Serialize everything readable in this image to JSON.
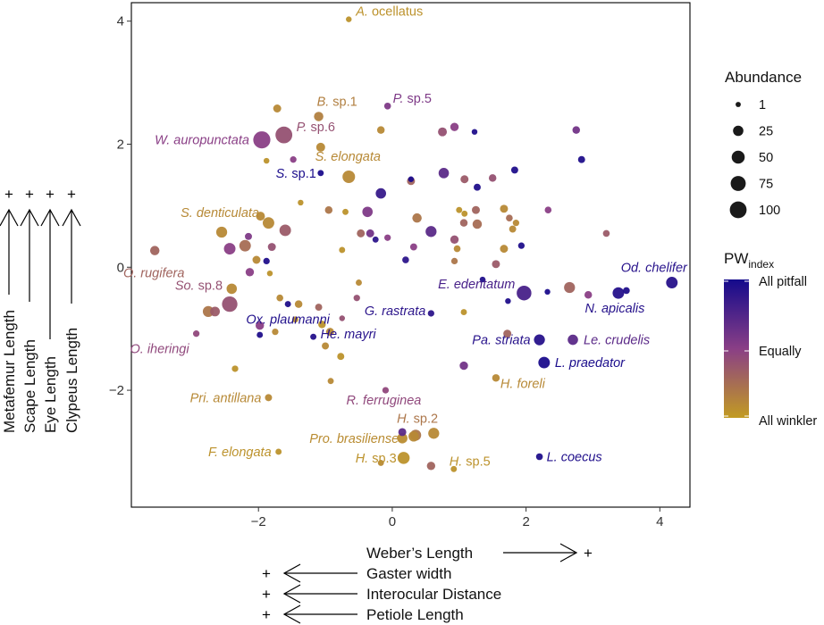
{
  "chart_data": {
    "type": "scatter",
    "x_ticks": [
      -2,
      0,
      2,
      4
    ],
    "y_ticks": [
      -2,
      0,
      2,
      4
    ],
    "xlim": [
      -3.9,
      4.45
    ],
    "ylim": [
      -3.9,
      4.3
    ],
    "grid": false,
    "legend": {
      "placement": "right",
      "size_title": "Abundance",
      "size_breaks": [
        {
          "label": "1",
          "value": 1
        },
        {
          "label": "25",
          "value": 25
        },
        {
          "label": "50",
          "value": 50
        },
        {
          "label": "75",
          "value": 75
        },
        {
          "label": "100",
          "value": 100
        }
      ],
      "color_title_main": "PW",
      "color_title_sub": "index",
      "color_labels": [
        "All pitfall",
        "Equally",
        "All winkler"
      ],
      "color_stops": [
        "#140a8c",
        "#8a3f86",
        "#c29b22"
      ]
    },
    "x_axis_loadings": {
      "positive": [
        {
          "label": "Weber’s Length",
          "sign": "+"
        }
      ],
      "negative": [
        {
          "label": "Gaster width",
          "sign": "+"
        },
        {
          "label": "Interocular Distance",
          "sign": "+"
        },
        {
          "label": "Petiole Length",
          "sign": "+"
        }
      ]
    },
    "y_axis_loadings": [
      {
        "label": "Metafemur Length",
        "sign": "+"
      },
      {
        "label": "Scape Length",
        "sign": "+"
      },
      {
        "label": "Eye Length",
        "sign": "+"
      },
      {
        "label": "Clypeus Length",
        "sign": "+"
      }
    ],
    "labeled_points": [
      {
        "genus": "A.",
        "epithet": " ocellatus",
        "x": -0.65,
        "y": 4.03,
        "pw": 0.05,
        "abundance": 2
      },
      {
        "genus": "B.",
        "epithet": " sp.1",
        "x": -1.1,
        "y": 2.45,
        "pw": 0.15,
        "abundance": 18
      },
      {
        "genus": "P.",
        "epithet": " sp.5",
        "x": -0.07,
        "y": 2.62,
        "pw": 0.55,
        "abundance": 5
      },
      {
        "genus": "W. auropunctata",
        "epithet": "",
        "x": -1.95,
        "y": 2.07,
        "pw": 0.5,
        "abundance": 105
      },
      {
        "genus": "P.",
        "epithet": " sp.6",
        "x": -1.62,
        "y": 2.15,
        "pw": 0.4,
        "abundance": 100
      },
      {
        "genus": "S. elongata",
        "epithet": "",
        "x": -0.65,
        "y": 1.47,
        "pw": 0.1,
        "abundance": 45
      },
      {
        "genus": "S.",
        "epithet": " sp.1",
        "x": -1.07,
        "y": 1.53,
        "pw": 0.97,
        "abundance": 3
      },
      {
        "genus": "S. denticulata",
        "epithet": "",
        "x": -2.55,
        "y": 0.57,
        "pw": 0.1,
        "abundance": 30
      },
      {
        "genus": "O. rugifera",
        "epithet": "",
        "x": -3.55,
        "y": 0.27,
        "pw": 0.3,
        "abundance": 18
      },
      {
        "genus": "So.",
        "epithet": " sp.8",
        "x": -2.43,
        "y": -0.6,
        "pw": 0.4,
        "abundance": 80
      },
      {
        "genus": "Ox. plaumanni",
        "epithet": "",
        "x": -1.56,
        "y": -0.6,
        "pw": 0.95,
        "abundance": 3
      },
      {
        "genus": "O. iheringi",
        "epithet": "",
        "x": -2.93,
        "y": -1.08,
        "pw": 0.45,
        "abundance": 4
      },
      {
        "genus": "He. mayri",
        "epithet": "",
        "x": -1.18,
        "y": -1.13,
        "pw": 0.93,
        "abundance": 3
      },
      {
        "genus": "G. rastrata",
        "epithet": "",
        "x": 0.58,
        "y": -0.75,
        "pw": 0.9,
        "abundance": 4
      },
      {
        "genus": "E. edentatum",
        "epithet": "",
        "x": 1.97,
        "y": -0.42,
        "pw": 0.78,
        "abundance": 70
      },
      {
        "genus": "Od. chelifer",
        "epithet": "",
        "x": 4.18,
        "y": -0.25,
        "pw": 0.92,
        "abundance": 35
      },
      {
        "genus": "N. apicalis",
        "epithet": "",
        "x": 3.38,
        "y": -0.42,
        "pw": 0.93,
        "abundance": 35
      },
      {
        "genus": "Pa. striata",
        "epithet": "",
        "x": 2.2,
        "y": -1.18,
        "pw": 0.92,
        "abundance": 30
      },
      {
        "genus": "Le. crudelis",
        "epithet": "",
        "x": 2.7,
        "y": -1.18,
        "pw": 0.7,
        "abundance": 25
      },
      {
        "genus": "L. praedator",
        "epithet": "",
        "x": 2.27,
        "y": -1.55,
        "pw": 0.97,
        "abundance": 35
      },
      {
        "genus": "H. foreli",
        "epithet": "",
        "x": 1.55,
        "y": -1.8,
        "pw": 0.1,
        "abundance": 8
      },
      {
        "genus": "Pri. antillana",
        "epithet": "",
        "x": -1.85,
        "y": -2.12,
        "pw": 0.1,
        "abundance": 6
      },
      {
        "genus": "R. ferruginea",
        "epithet": "",
        "x": -0.1,
        "y": -2.0,
        "pw": 0.45,
        "abundance": 4
      },
      {
        "genus": "H.",
        "epithet": " sp.2",
        "x": 0.35,
        "y": -2.73,
        "pw": 0.2,
        "abundance": 30
      },
      {
        "genus": "Pro. brasiliense",
        "epithet": "",
        "x": 0.15,
        "y": -2.78,
        "pw": 0.08,
        "abundance": 25
      },
      {
        "genus": "F. elongata",
        "epithet": "",
        "x": -1.7,
        "y": -3.0,
        "pw": 0.05,
        "abundance": 3
      },
      {
        "genus": "H.",
        "epithet": " sp.3",
        "x": 0.17,
        "y": -3.1,
        "pw": 0.05,
        "abundance": 40
      },
      {
        "genus": "H.",
        "epithet": " sp.5",
        "x": 0.92,
        "y": -3.28,
        "pw": 0.05,
        "abundance": 3
      },
      {
        "genus": "L. coecus",
        "epithet": "",
        "x": 2.2,
        "y": -3.08,
        "pw": 0.95,
        "abundance": 5
      }
    ],
    "other_points": [
      {
        "x": -1.72,
        "y": 2.58,
        "pw": 0.1,
        "abundance": 10
      },
      {
        "x": -1.07,
        "y": 1.95,
        "pw": 0.1,
        "abundance": 15
      },
      {
        "x": -1.48,
        "y": 1.75,
        "pw": 0.5,
        "abundance": 4
      },
      {
        "x": -1.88,
        "y": 1.73,
        "pw": 0.05,
        "abundance": 2
      },
      {
        "x": -0.17,
        "y": 2.23,
        "pw": 0.1,
        "abundance": 8
      },
      {
        "x": 0.75,
        "y": 2.2,
        "pw": 0.4,
        "abundance": 15
      },
      {
        "x": 0.93,
        "y": 2.28,
        "pw": 0.5,
        "abundance": 12
      },
      {
        "x": 1.23,
        "y": 2.2,
        "pw": 0.95,
        "abundance": 2
      },
      {
        "x": 2.75,
        "y": 2.23,
        "pw": 0.6,
        "abundance": 8
      },
      {
        "x": 2.83,
        "y": 1.75,
        "pw": 0.95,
        "abundance": 6
      },
      {
        "x": 0.77,
        "y": 1.53,
        "pw": 0.7,
        "abundance": 25
      },
      {
        "x": 1.08,
        "y": 1.43,
        "pw": 0.35,
        "abundance": 10
      },
      {
        "x": 1.27,
        "y": 1.3,
        "pw": 0.95,
        "abundance": 6
      },
      {
        "x": 1.83,
        "y": 1.58,
        "pw": 0.95,
        "abundance": 6
      },
      {
        "x": 1.5,
        "y": 1.45,
        "pw": 0.4,
        "abundance": 8
      },
      {
        "x": 0.28,
        "y": 1.4,
        "pw": 0.3,
        "abundance": 10
      },
      {
        "x": 0.28,
        "y": 1.43,
        "pw": 0.97,
        "abundance": 2
      },
      {
        "x": -0.17,
        "y": 1.2,
        "pw": 0.85,
        "abundance": 25
      },
      {
        "x": -1.37,
        "y": 1.05,
        "pw": 0.05,
        "abundance": 2
      },
      {
        "x": -0.95,
        "y": 0.93,
        "pw": 0.2,
        "abundance": 8
      },
      {
        "x": -0.7,
        "y": 0.9,
        "pw": 0.05,
        "abundance": 3
      },
      {
        "x": -0.37,
        "y": 0.9,
        "pw": 0.55,
        "abundance": 25
      },
      {
        "x": -1.97,
        "y": 0.83,
        "pw": 0.1,
        "abundance": 15
      },
      {
        "x": -1.85,
        "y": 0.72,
        "pw": 0.1,
        "abundance": 35
      },
      {
        "x": -1.6,
        "y": 0.6,
        "pw": 0.35,
        "abundance": 35
      },
      {
        "x": -1.8,
        "y": 0.33,
        "pw": 0.4,
        "abundance": 10
      },
      {
        "x": -2.15,
        "y": 0.5,
        "pw": 0.55,
        "abundance": 6
      },
      {
        "x": -2.2,
        "y": 0.35,
        "pw": 0.25,
        "abundance": 35
      },
      {
        "x": -2.43,
        "y": 0.3,
        "pw": 0.5,
        "abundance": 35
      },
      {
        "x": -2.03,
        "y": 0.12,
        "pw": 0.1,
        "abundance": 10
      },
      {
        "x": -1.88,
        "y": 0.1,
        "pw": 0.95,
        "abundance": 4
      },
      {
        "x": -2.13,
        "y": -0.08,
        "pw": 0.5,
        "abundance": 12
      },
      {
        "x": -1.83,
        "y": -0.1,
        "pw": 0.05,
        "abundance": 2
      },
      {
        "x": -0.75,
        "y": 0.28,
        "pw": 0.05,
        "abundance": 3
      },
      {
        "x": -0.47,
        "y": 0.55,
        "pw": 0.3,
        "abundance": 10
      },
      {
        "x": -0.33,
        "y": 0.55,
        "pw": 0.6,
        "abundance": 10
      },
      {
        "x": -0.25,
        "y": 0.45,
        "pw": 0.9,
        "abundance": 3
      },
      {
        "x": -0.07,
        "y": 0.48,
        "pw": 0.5,
        "abundance": 4
      },
      {
        "x": 0.37,
        "y": 0.8,
        "pw": 0.2,
        "abundance": 18
      },
      {
        "x": 0.58,
        "y": 0.58,
        "pw": 0.7,
        "abundance": 30
      },
      {
        "x": 0.32,
        "y": 0.33,
        "pw": 0.5,
        "abundance": 6
      },
      {
        "x": 0.2,
        "y": 0.12,
        "pw": 0.9,
        "abundance": 5
      },
      {
        "x": 0.93,
        "y": 0.45,
        "pw": 0.4,
        "abundance": 12
      },
      {
        "x": 1.08,
        "y": 0.87,
        "pw": 0.05,
        "abundance": 3
      },
      {
        "x": 1.0,
        "y": 0.93,
        "pw": 0.05,
        "abundance": 3
      },
      {
        "x": 1.25,
        "y": 0.93,
        "pw": 0.3,
        "abundance": 10
      },
      {
        "x": 1.27,
        "y": 0.7,
        "pw": 0.25,
        "abundance": 18
      },
      {
        "x": 1.07,
        "y": 0.72,
        "pw": 0.3,
        "abundance": 8
      },
      {
        "x": 0.97,
        "y": 0.3,
        "pw": 0.1,
        "abundance": 5
      },
      {
        "x": 0.93,
        "y": 0.1,
        "pw": 0.2,
        "abundance": 4
      },
      {
        "x": 1.67,
        "y": 0.95,
        "pw": 0.1,
        "abundance": 10
      },
      {
        "x": 1.75,
        "y": 0.8,
        "pw": 0.25,
        "abundance": 5
      },
      {
        "x": 1.8,
        "y": 0.62,
        "pw": 0.1,
        "abundance": 6
      },
      {
        "x": 1.85,
        "y": 0.72,
        "pw": 0.1,
        "abundance": 4
      },
      {
        "x": 1.93,
        "y": 0.35,
        "pw": 0.95,
        "abundance": 4
      },
      {
        "x": 1.67,
        "y": 0.3,
        "pw": 0.1,
        "abundance": 10
      },
      {
        "x": 1.55,
        "y": 0.05,
        "pw": 0.35,
        "abundance": 10
      },
      {
        "x": 2.33,
        "y": 0.93,
        "pw": 0.5,
        "abundance": 5
      },
      {
        "x": 1.35,
        "y": -0.2,
        "pw": 0.95,
        "abundance": 2
      },
      {
        "x": 1.07,
        "y": -0.73,
        "pw": 0.05,
        "abundance": 3
      },
      {
        "x": 2.65,
        "y": -0.33,
        "pw": 0.3,
        "abundance": 30
      },
      {
        "x": 2.93,
        "y": -0.45,
        "pw": 0.5,
        "abundance": 8
      },
      {
        "x": 3.5,
        "y": -0.38,
        "pw": 0.95,
        "abundance": 5
      },
      {
        "x": 2.32,
        "y": -0.4,
        "pw": 0.97,
        "abundance": 2
      },
      {
        "x": 1.73,
        "y": -0.55,
        "pw": 0.95,
        "abundance": 2
      },
      {
        "x": 1.72,
        "y": -1.08,
        "pw": 0.3,
        "abundance": 10
      },
      {
        "x": 1.07,
        "y": -1.6,
        "pw": 0.6,
        "abundance": 12
      },
      {
        "x": 3.2,
        "y": 0.55,
        "pw": 0.35,
        "abundance": 5
      },
      {
        "x": -0.53,
        "y": -0.5,
        "pw": 0.4,
        "abundance": 4
      },
      {
        "x": -0.75,
        "y": -0.83,
        "pw": 0.4,
        "abundance": 2
      },
      {
        "x": -0.77,
        "y": -1.45,
        "pw": 0.05,
        "abundance": 6
      },
      {
        "x": -0.93,
        "y": -1.05,
        "pw": 0.1,
        "abundance": 10
      },
      {
        "x": -1.05,
        "y": -0.93,
        "pw": 0.05,
        "abundance": 8
      },
      {
        "x": -1.1,
        "y": -0.65,
        "pw": 0.3,
        "abundance": 6
      },
      {
        "x": -1.4,
        "y": -0.6,
        "pw": 0.1,
        "abundance": 8
      },
      {
        "x": -1.45,
        "y": -0.85,
        "pw": 0.05,
        "abundance": 3
      },
      {
        "x": -1.68,
        "y": -0.5,
        "pw": 0.1,
        "abundance": 5
      },
      {
        "x": -1.98,
        "y": -1.1,
        "pw": 0.95,
        "abundance": 3
      },
      {
        "x": -1.98,
        "y": -0.95,
        "pw": 0.5,
        "abundance": 12
      },
      {
        "x": -1.75,
        "y": -1.05,
        "pw": 0.1,
        "abundance": 4
      },
      {
        "x": -2.4,
        "y": -0.35,
        "pw": 0.1,
        "abundance": 25
      },
      {
        "x": -2.65,
        "y": -0.72,
        "pw": 0.35,
        "abundance": 20
      },
      {
        "x": -2.75,
        "y": -0.72,
        "pw": 0.2,
        "abundance": 30
      },
      {
        "x": -2.35,
        "y": -1.65,
        "pw": 0.05,
        "abundance": 4
      },
      {
        "x": -1.0,
        "y": -1.28,
        "pw": 0.1,
        "abundance": 6
      },
      {
        "x": -0.92,
        "y": -1.85,
        "pw": 0.1,
        "abundance": 3
      },
      {
        "x": -0.5,
        "y": -0.25,
        "pw": 0.1,
        "abundance": 3
      },
      {
        "x": 0.32,
        "y": -2.75,
        "pw": 0.1,
        "abundance": 25
      },
      {
        "x": 0.62,
        "y": -2.7,
        "pw": 0.1,
        "abundance": 30
      },
      {
        "x": 0.15,
        "y": -2.68,
        "pw": 0.7,
        "abundance": 10
      },
      {
        "x": 0.58,
        "y": -3.23,
        "pw": 0.3,
        "abundance": 12
      },
      {
        "x": -0.17,
        "y": -3.18,
        "pw": 0.1,
        "abundance": 3
      }
    ]
  }
}
